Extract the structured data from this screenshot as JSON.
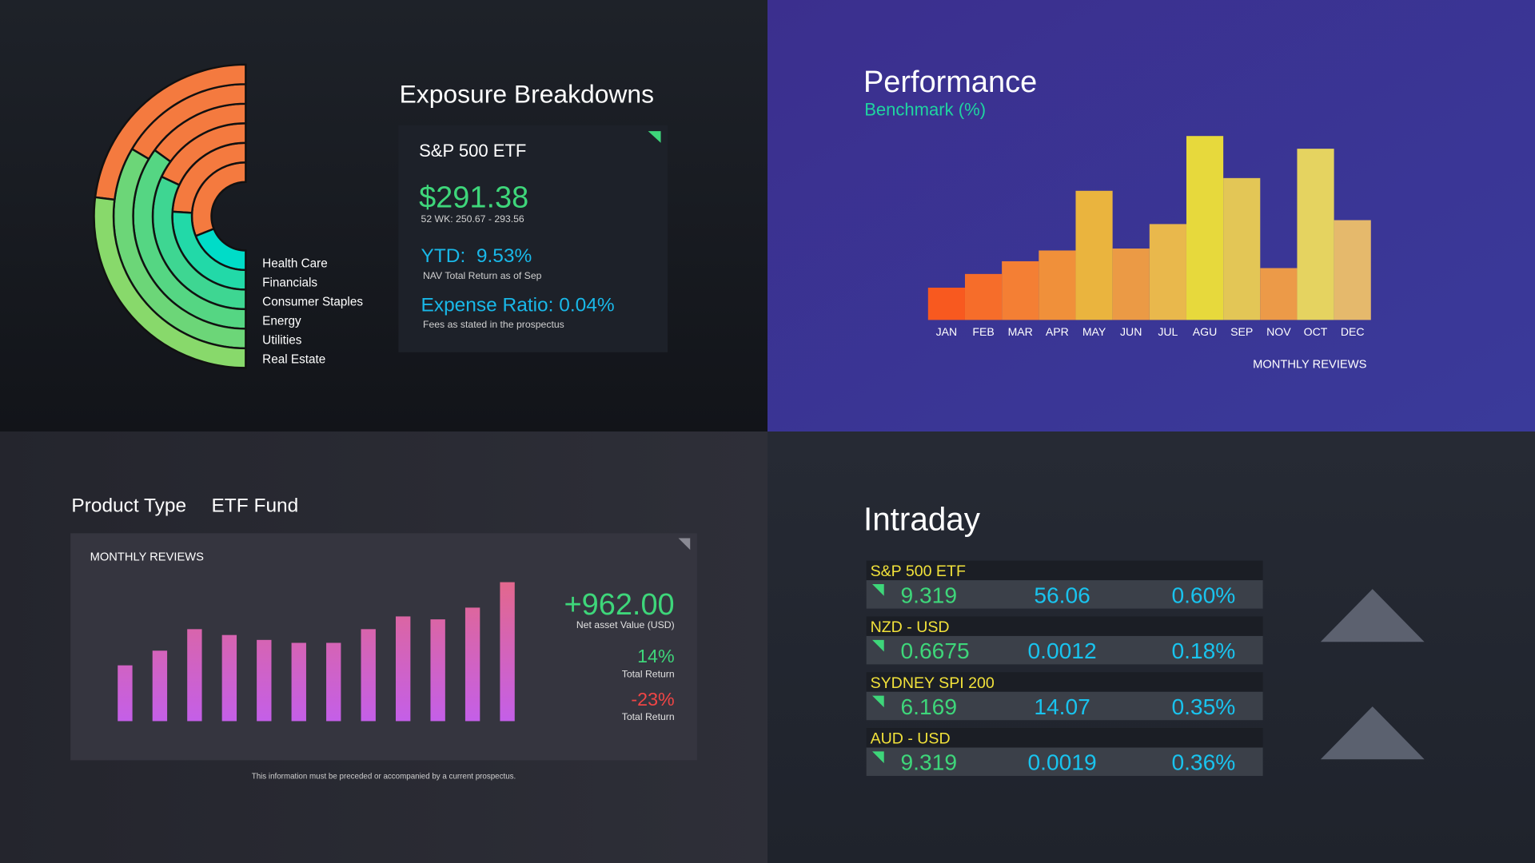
{
  "card": {
    "name": "S&P 500 ETF",
    "price": "$291.38",
    "range": "52 WK: 250.67 - 293.56",
    "ytd": "YTD:  9.53%",
    "ytd_note": "NAV Total Return as of Sep",
    "expense": "Expense Ratio: 0.04%",
    "expense_note": "Fees as stated in the prospectus"
  },
  "chart_data": [
    {
      "type": "radial",
      "title": "Exposure Breakdowns",
      "categories": [
        "Health Care",
        "Financials",
        "Consumer Staples",
        "Energy",
        "Utilities",
        "Real Estate"
      ],
      "values": [
        62,
        48,
        36,
        30,
        33,
        46
      ],
      "ylim": [
        0,
        100
      ],
      "color": "#f47a3f",
      "colors": [
        "#00dcc8",
        "#22d9a8",
        "#3ed692",
        "#55d683",
        "#6cd678",
        "#88d96b"
      ]
    },
    {
      "type": "bar",
      "title": "Performance",
      "subtitle": "Benchmark (%)",
      "note": "MONTHLY REVIEWS",
      "categories": [
        "JAN",
        "FEB",
        "MAR",
        "APR",
        "MAY",
        "JUN",
        "JUL",
        "AGU",
        "SEP",
        "NOV",
        "OCT",
        "DEC"
      ],
      "values": [
        33,
        47,
        60,
        71,
        132,
        73,
        98,
        188,
        145,
        53,
        175,
        102
      ],
      "ylim": [
        0,
        200
      ],
      "colors": [
        "#f8591f",
        "#f66d2a",
        "#f47f34",
        "#f0903a",
        "#eab43e",
        "#eb9a45",
        "#e9b84c",
        "#e7d93c",
        "#e3c656",
        "#ec9a48",
        "#e5d360",
        "#e5b96c"
      ]
    },
    {
      "type": "bar",
      "title": "MONTHLY REVIEWS",
      "values": [
        57,
        72,
        94,
        88,
        83,
        80,
        80,
        94,
        107,
        104,
        116,
        142
      ],
      "ylim": [
        0,
        150
      ],
      "color": "#c45fe8",
      "color_top": "#e46888"
    }
  ],
  "product": {
    "title": "Product Type",
    "subtitle": "ETF Fund",
    "nav": "+962.00",
    "nav_label": "Net asset Value (USD)",
    "returns": [
      {
        "value": "14%",
        "label": "Total Return"
      },
      {
        "value": "-23%",
        "label": "Total Return"
      }
    ],
    "footnote": "This information must be preceded or accompanied by a current prospectus."
  },
  "intraday": {
    "title": "Intraday",
    "rows": [
      {
        "name": "S&P 500 ETF",
        "price": "9.319",
        "change": "56.06",
        "percent": "0.60%"
      },
      {
        "name": "NZD - USD",
        "price": "0.6675",
        "change": "0.0012",
        "percent": "0.18%"
      },
      {
        "name": "SYDNEY SPI 200",
        "price": "6.169",
        "change": "14.07",
        "percent": "0.35%"
      },
      {
        "name": "AUD - USD",
        "price": "9.319",
        "change": "0.0019",
        "percent": "0.36%"
      }
    ]
  }
}
